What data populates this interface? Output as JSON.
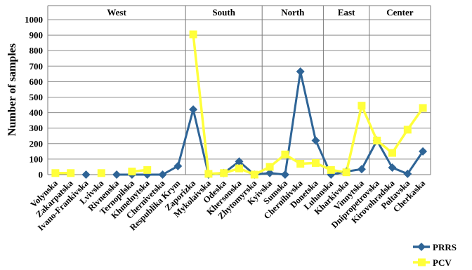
{
  "chart_data": {
    "type": "line",
    "ylabel": "Number of samples",
    "ylim": [
      0,
      1000
    ],
    "yticks": [
      0,
      100,
      200,
      300,
      400,
      500,
      600,
      700,
      800,
      900,
      1000
    ],
    "grid": true,
    "legend_position": "bottom-right",
    "regions": [
      {
        "name": "West",
        "start": 0,
        "end": 8
      },
      {
        "name": "South",
        "start": 9,
        "end": 13
      },
      {
        "name": "North",
        "start": 14,
        "end": 17
      },
      {
        "name": "East",
        "start": 18,
        "end": 20
      },
      {
        "name": "Center",
        "start": 21,
        "end": 26
      }
    ],
    "categories": [
      "Volynska",
      "Zakarpatska",
      "Ivano-Frankivska",
      "Lvivska",
      "Rivnenska",
      "Ternopilska",
      "Khmelnytska",
      "Chernivetska",
      "Respublika Krym",
      "Zaporizka",
      "Mykolaivska",
      "Odeska",
      "Khersonska",
      "Zhytomyrska",
      "Kyivska",
      "Sumska",
      "Chernihivska",
      "Donetska",
      "Luhanska",
      "Kharkivska",
      "Vinnytska",
      "Dnipropetrovska",
      "Kirovohradska",
      "Poltavska",
      "Cherkaska"
    ],
    "series": [
      {
        "name": "PRRS",
        "color": "#2e6496",
        "marker": "diamond",
        "values": [
          null,
          null,
          0,
          null,
          0,
          0,
          0,
          0,
          55,
          420,
          0,
          10,
          85,
          0,
          10,
          0,
          665,
          220,
          0,
          20,
          35,
          220,
          45,
          5,
          150
        ]
      },
      {
        "name": "PCV",
        "color": "#ffff3a",
        "marker": "square",
        "values": [
          10,
          10,
          null,
          10,
          null,
          20,
          30,
          null,
          null,
          905,
          5,
          10,
          40,
          0,
          50,
          130,
          70,
          75,
          30,
          15,
          445,
          220,
          140,
          290,
          430
        ]
      }
    ]
  }
}
